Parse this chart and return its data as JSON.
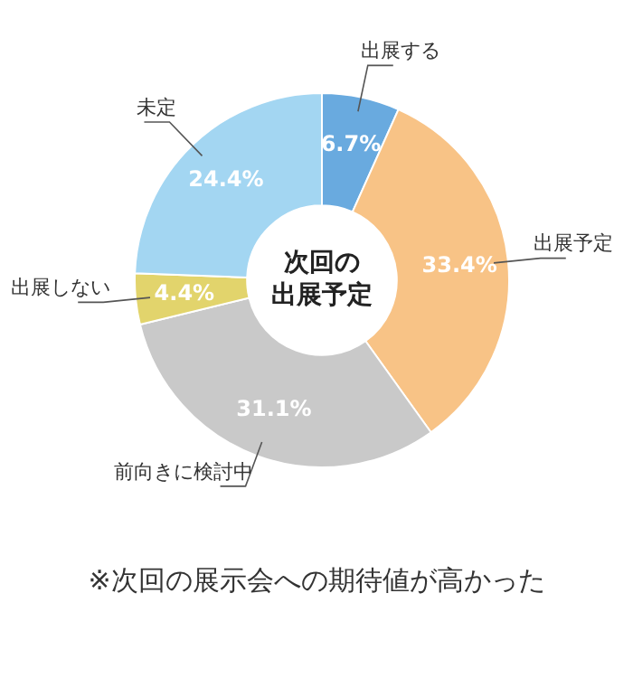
{
  "chart_data": {
    "type": "donut",
    "title": "次回の出展予定",
    "categories": [
      "出展する",
      "出展予定",
      "前向きに検討中",
      "出展しない",
      "未定"
    ],
    "values": [
      6.7,
      33.4,
      31.1,
      4.4,
      24.4
    ],
    "colors": [
      "#69aadf",
      "#f8c386",
      "#c9c9c9",
      "#e2d46c",
      "#a3d6f2"
    ],
    "value_labels": [
      "6.7%",
      "33.4%",
      "31.1%",
      "4.4%",
      "24.4%"
    ],
    "annotations": [
      "※次回の展示会への期待値が高かった"
    ],
    "legend": false
  }
}
